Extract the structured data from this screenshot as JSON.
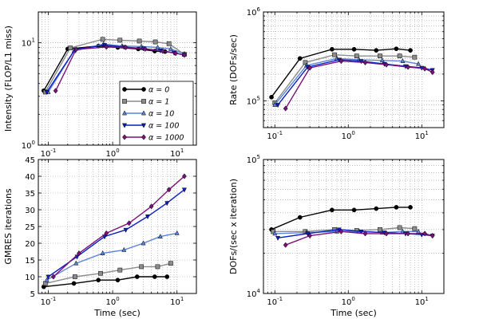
{
  "colors": {
    "a0": "#000000",
    "a1": "#8c8c8c",
    "a10": "#5b84d8",
    "a100": "#0a1fc4",
    "a1000": "#7a117a"
  },
  "chart_data": [
    {
      "id": "intensity",
      "type": "line",
      "xscale": "log",
      "yscale": "log",
      "xlim": [
        0.07,
        20
      ],
      "ylim": [
        1,
        20
      ],
      "xticks": [
        0.1,
        1,
        10
      ],
      "xticklabels": [
        [
          "10",
          "-1"
        ],
        [
          "10",
          "0"
        ],
        [
          "10",
          "1"
        ]
      ],
      "yticks": [
        1,
        10
      ],
      "yticklabels": [
        [
          "10",
          "0"
        ],
        [
          "10",
          "1"
        ]
      ],
      "xlabel": "",
      "ylabel": "Intensity (FLOP/L1 miss)",
      "legend": "lower-right",
      "series": [
        {
          "name": "α = 0",
          "color": "a0",
          "marker": "circle",
          "x": [
            0.085,
            0.2,
            0.6,
            1.2,
            2.5,
            4.5,
            6.5
          ],
          "y": [
            3.4,
            8.7,
            9.3,
            9.0,
            8.7,
            8.3,
            8.2
          ]
        },
        {
          "name": "α = 1",
          "color": "a1",
          "marker": "square",
          "x": [
            0.09,
            0.22,
            0.7,
            1.3,
            2.6,
            4.6,
            7.5,
            13
          ],
          "y": [
            3.3,
            8.9,
            10.8,
            10.6,
            10.4,
            10.2,
            9.8,
            7.7
          ]
        },
        {
          "name": "α = 10",
          "color": "a10",
          "marker": "triangle",
          "x": [
            0.1,
            0.25,
            0.72,
            1.4,
            2.8,
            5,
            8,
            13
          ],
          "y": [
            3.3,
            8.3,
            9.7,
            9.3,
            9.2,
            9.0,
            8.7,
            7.8
          ]
        },
        {
          "name": "α = 100",
          "color": "a100",
          "marker": "down",
          "x": [
            0.095,
            0.26,
            0.75,
            1.5,
            3,
            5.5,
            9,
            13
          ],
          "y": [
            3.3,
            8.6,
            9.5,
            9.1,
            8.8,
            8.4,
            8.0,
            7.6
          ]
        },
        {
          "name": "α = 1000",
          "color": "a1000",
          "marker": "diamond",
          "x": [
            0.13,
            0.27,
            0.8,
            1.6,
            3.2,
            6,
            9.5,
            13
          ],
          "y": [
            3.4,
            8.6,
            9.1,
            9.0,
            8.7,
            8.3,
            7.9,
            7.6
          ]
        }
      ]
    },
    {
      "id": "rate",
      "type": "line",
      "xscale": "log",
      "yscale": "log",
      "xlim": [
        0.07,
        20
      ],
      "ylim": [
        50000,
        1000000
      ],
      "xticks": [
        0.1,
        1,
        10
      ],
      "xticklabels": [
        [
          "10",
          "-1"
        ],
        [
          "10",
          "0"
        ],
        [
          "10",
          "1"
        ]
      ],
      "yticks": [
        100000,
        1000000
      ],
      "yticklabels": [
        [
          "10",
          "5"
        ],
        [
          "10",
          "6"
        ]
      ],
      "xlabel": "",
      "ylabel": "Rate (DOFs/sec)",
      "series": [
        {
          "name": "α = 0",
          "color": "a0",
          "marker": "circle",
          "x": [
            0.09,
            0.22,
            0.6,
            1.2,
            2.4,
            4.5,
            7
          ],
          "y": [
            110000,
            300000,
            380000,
            380000,
            370000,
            385000,
            370000
          ]
        },
        {
          "name": "α = 1",
          "color": "a1",
          "marker": "square",
          "x": [
            0.1,
            0.26,
            0.65,
            1.3,
            2.7,
            5,
            8
          ],
          "y": [
            95000,
            270000,
            330000,
            320000,
            320000,
            320000,
            310000
          ]
        },
        {
          "name": "α = 10",
          "color": "a10",
          "marker": "triangle",
          "x": [
            0.1,
            0.27,
            0.7,
            1.4,
            2.9,
            5.5,
            9
          ],
          "y": [
            90000,
            250000,
            300000,
            290000,
            285000,
            280000,
            260000
          ]
        },
        {
          "name": "α = 100",
          "color": "a100",
          "marker": "down",
          "x": [
            0.11,
            0.28,
            0.75,
            1.5,
            3.1,
            6,
            10,
            14
          ],
          "y": [
            90000,
            240000,
            290000,
            280000,
            260000,
            245000,
            235000,
            222000
          ]
        },
        {
          "name": "α = 1000",
          "color": "a1000",
          "marker": "diamond",
          "x": [
            0.14,
            0.3,
            0.8,
            1.7,
            3.3,
            6.5,
            11,
            14
          ],
          "y": [
            82000,
            235000,
            280000,
            270000,
            255000,
            240000,
            230000,
            210000
          ]
        }
      ]
    },
    {
      "id": "gmres",
      "type": "line",
      "xscale": "log",
      "yscale": "linear",
      "xlim": [
        0.07,
        20
      ],
      "ylim": [
        5,
        45
      ],
      "xticks": [
        0.1,
        1,
        10
      ],
      "xticklabels": [
        [
          "10",
          "-1"
        ],
        [
          "10",
          "0"
        ],
        [
          "10",
          "1"
        ]
      ],
      "yticks": [
        5,
        10,
        15,
        20,
        25,
        30,
        35,
        40,
        45
      ],
      "yticklabels": [
        "5",
        "10",
        "15",
        "20",
        "25",
        "30",
        "35",
        "40",
        "45"
      ],
      "xlabel": "Time (sec)",
      "ylabel": "GMRES iterations",
      "series": [
        {
          "name": "α = 0",
          "color": "a0",
          "marker": "circle",
          "x": [
            0.085,
            0.25,
            0.6,
            1.2,
            2.4,
            4.5,
            7
          ],
          "y": [
            7,
            8,
            9,
            9,
            10,
            10,
            10
          ]
        },
        {
          "name": "α = 1",
          "color": "a1",
          "marker": "square",
          "x": [
            0.09,
            0.26,
            0.65,
            1.3,
            2.8,
            5,
            8
          ],
          "y": [
            8,
            10,
            11,
            12,
            13,
            13,
            14
          ]
        },
        {
          "name": "α = 10",
          "color": "a10",
          "marker": "triangle",
          "x": [
            0.095,
            0.27,
            0.7,
            1.5,
            3,
            5.5,
            10
          ],
          "y": [
            9,
            14,
            17,
            18,
            20,
            22,
            23
          ]
        },
        {
          "name": "α = 100",
          "color": "a100",
          "marker": "down",
          "x": [
            0.1,
            0.28,
            0.75,
            1.6,
            3.5,
            7,
            13
          ],
          "y": [
            10,
            16,
            22,
            24,
            28,
            32,
            36
          ]
        },
        {
          "name": "α = 1000",
          "color": "a1000",
          "marker": "diamond",
          "x": [
            0.12,
            0.3,
            0.8,
            1.8,
            4,
            7.5,
            13
          ],
          "y": [
            10,
            17,
            23,
            26,
            31,
            36,
            40
          ]
        }
      ]
    },
    {
      "id": "dofs_per_iter",
      "type": "line",
      "xscale": "log",
      "yscale": "log",
      "xlim": [
        0.07,
        20
      ],
      "ylim": [
        10000,
        100000
      ],
      "xticks": [
        0.1,
        1,
        10
      ],
      "xticklabels": [
        [
          "10",
          "-1"
        ],
        [
          "10",
          "0"
        ],
        [
          "10",
          "1"
        ]
      ],
      "yticks": [
        10000,
        100000
      ],
      "yticklabels": [
        [
          "10",
          "4"
        ],
        [
          "10",
          "5"
        ]
      ],
      "xlabel": "Time (sec)",
      "ylabel": "DOFs/(sec x iteration)",
      "series": [
        {
          "name": "α = 0",
          "color": "a0",
          "marker": "circle",
          "x": [
            0.09,
            0.22,
            0.6,
            1.2,
            2.4,
            4.5,
            7
          ],
          "y": [
            30000,
            37000,
            42000,
            42000,
            43000,
            44000,
            44000
          ]
        },
        {
          "name": "α = 1",
          "color": "a1",
          "marker": "square",
          "x": [
            0.095,
            0.26,
            0.65,
            1.3,
            2.7,
            5,
            8
          ],
          "y": [
            29000,
            29000,
            30000,
            29500,
            30000,
            31000,
            30500
          ]
        },
        {
          "name": "α = 10",
          "color": "a10",
          "marker": "triangle",
          "x": [
            0.1,
            0.27,
            0.7,
            1.4,
            2.9,
            5.5,
            9
          ],
          "y": [
            28000,
            28500,
            29000,
            29000,
            28500,
            29000,
            29000
          ]
        },
        {
          "name": "α = 100",
          "color": "a100",
          "marker": "down",
          "x": [
            0.11,
            0.28,
            0.75,
            1.5,
            3.1,
            6,
            10,
            14
          ],
          "y": [
            26000,
            28000,
            30000,
            29000,
            28500,
            28000,
            27500,
            27000
          ]
        },
        {
          "name": "α = 1000",
          "color": "a1000",
          "marker": "diamond",
          "x": [
            0.14,
            0.3,
            0.8,
            1.7,
            3.3,
            6.5,
            11,
            14
          ],
          "y": [
            23000,
            27000,
            29000,
            28000,
            28000,
            28000,
            28000,
            27000
          ]
        }
      ]
    }
  ],
  "legend": {
    "entries": [
      {
        "sym": "α",
        "eq": " = 0",
        "series": 0
      },
      {
        "sym": "α",
        "eq": " = 1",
        "series": 1
      },
      {
        "sym": "α",
        "eq": " = 10",
        "series": 2
      },
      {
        "sym": "α",
        "eq": " = 100",
        "series": 3
      },
      {
        "sym": "α",
        "eq": " = 1000",
        "series": 4
      }
    ]
  }
}
